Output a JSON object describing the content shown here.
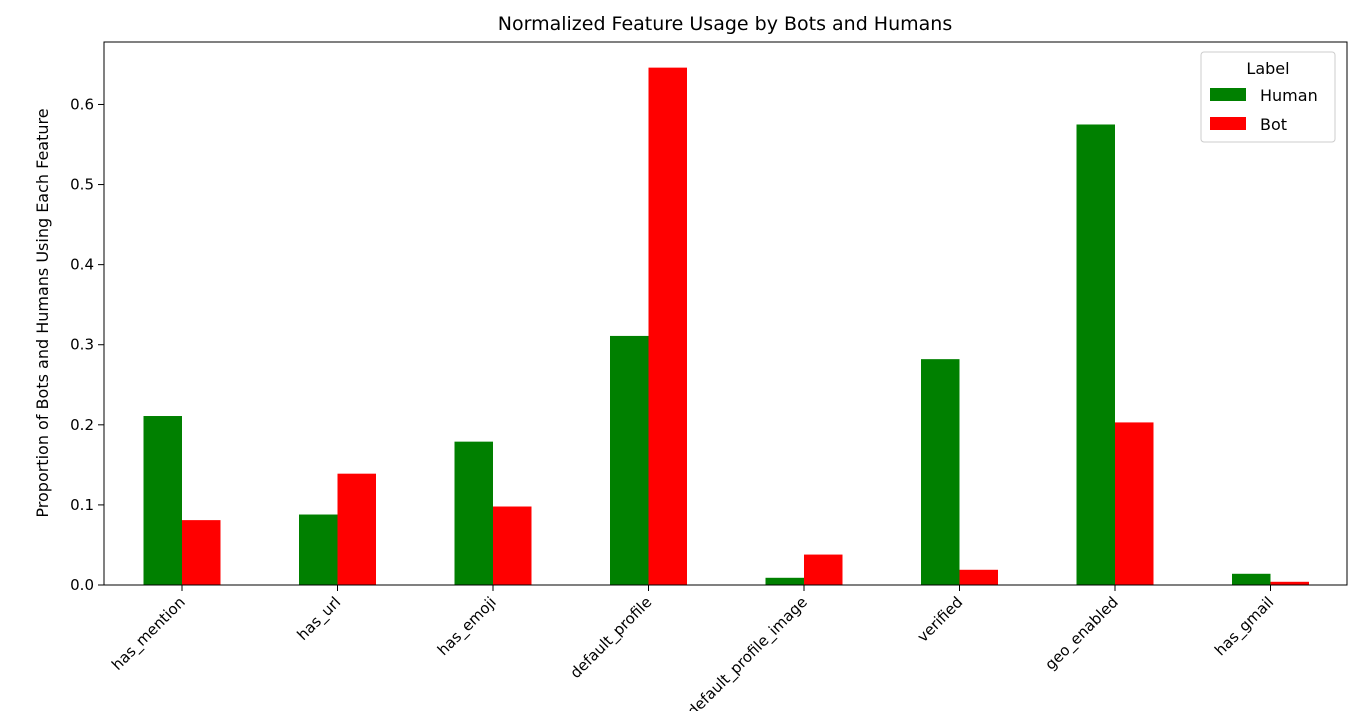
{
  "chart_data": {
    "type": "bar",
    "title": "Normalized Feature Usage by Bots and Humans",
    "xlabel": "",
    "ylabel": "Proportion of Bots and Humans Using Each Feature",
    "categories": [
      "has_mention",
      "has_url",
      "has_emoji",
      "default_profile",
      "default_profile_image",
      "verified",
      "geo_enabled",
      "has_gmail"
    ],
    "series": [
      {
        "name": "Human",
        "color": "#008000",
        "values": [
          0.211,
          0.088,
          0.179,
          0.311,
          0.009,
          0.282,
          0.575,
          0.014
        ]
      },
      {
        "name": "Bot",
        "color": "#ff0000",
        "values": [
          0.081,
          0.139,
          0.098,
          0.646,
          0.038,
          0.019,
          0.203,
          0.004
        ]
      }
    ],
    "ylim": [
      0,
      0.678
    ],
    "yticks": [
      0.0,
      0.1,
      0.2,
      0.3,
      0.4,
      0.5,
      0.6
    ],
    "grid": false,
    "legend": {
      "title": "Label",
      "position": "top-right"
    }
  }
}
